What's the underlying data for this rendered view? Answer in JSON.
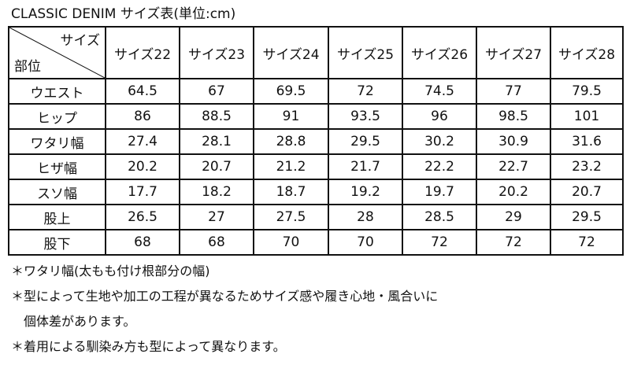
{
  "title": "CLASSIC DENIM サイズ表(単位:cm)",
  "table": {
    "corner_top": "サイズ",
    "corner_bottom": "部位",
    "columns": [
      "サイズ22",
      "サイズ23",
      "サイズ24",
      "サイズ25",
      "サイズ26",
      "サイズ27",
      "サイズ28"
    ],
    "rows": [
      {
        "label": "ウエスト",
        "values": [
          "64.5",
          "67",
          "69.5",
          "72",
          "74.5",
          "77",
          "79.5"
        ]
      },
      {
        "label": "ヒップ",
        "values": [
          "86",
          "88.5",
          "91",
          "93.5",
          "96",
          "98.5",
          "101"
        ]
      },
      {
        "label": "ワタリ幅",
        "values": [
          "27.4",
          "28.1",
          "28.8",
          "29.5",
          "30.2",
          "30.9",
          "31.6"
        ]
      },
      {
        "label": "ヒザ幅",
        "values": [
          "20.2",
          "20.7",
          "21.2",
          "21.7",
          "22.2",
          "22.7",
          "23.2"
        ]
      },
      {
        "label": "スソ幅",
        "values": [
          "17.7",
          "18.2",
          "18.7",
          "19.2",
          "19.7",
          "20.2",
          "20.7"
        ]
      },
      {
        "label": "股上",
        "values": [
          "26.5",
          "27",
          "27.5",
          "28",
          "28.5",
          "29",
          "29.5"
        ]
      },
      {
        "label": "股下",
        "values": [
          "68",
          "68",
          "70",
          "70",
          "72",
          "72",
          "72"
        ]
      }
    ]
  },
  "notes": [
    "＊ワタリ幅(太もも付け根部分の幅)",
    "＊型によって生地や加工の工程が異なるためサイズ感や履き心地・風合いに",
    "　個体差があります。",
    "＊着用による馴染み方も型によって異なります。"
  ]
}
